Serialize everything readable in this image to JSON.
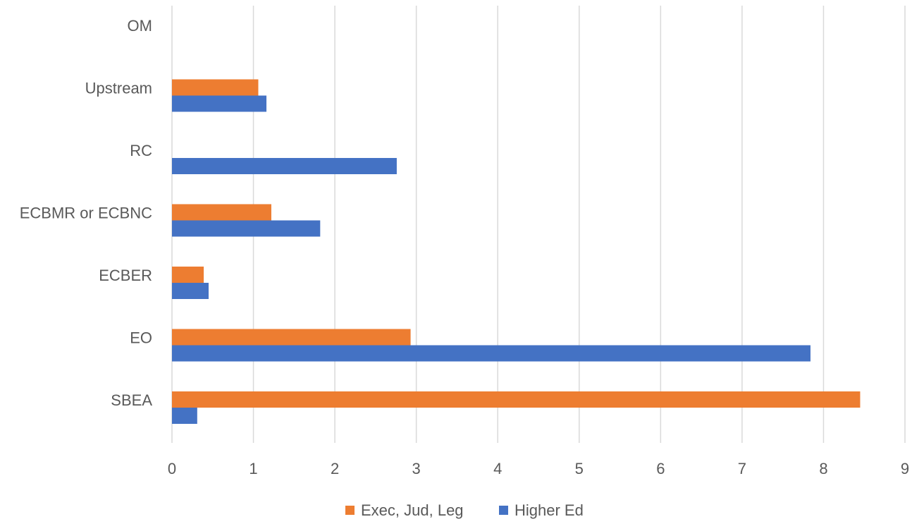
{
  "chart_data": {
    "type": "bar",
    "orientation": "horizontal",
    "title": "",
    "xlabel": "",
    "ylabel": "",
    "categories": [
      "SBEA",
      "EO",
      "ECBER",
      "ECBMR or ECBNC",
      "RC",
      "Upstream",
      "OM"
    ],
    "series": [
      {
        "name": "Exec, Jud, Leg",
        "color": "#ED7D31",
        "values": [
          8.45,
          2.93,
          0.39,
          1.22,
          0,
          1.06,
          0
        ]
      },
      {
        "name": "Higher Ed",
        "color": "#4472C4",
        "values": [
          0.31,
          7.84,
          0.45,
          1.82,
          2.76,
          1.16,
          0
        ]
      }
    ],
    "xlim": [
      0,
      9
    ],
    "ticks": [
      "0",
      "1",
      "2",
      "3",
      "4",
      "5",
      "6",
      "7",
      "8",
      "9"
    ],
    "grid": true,
    "legend_position": "bottom"
  }
}
